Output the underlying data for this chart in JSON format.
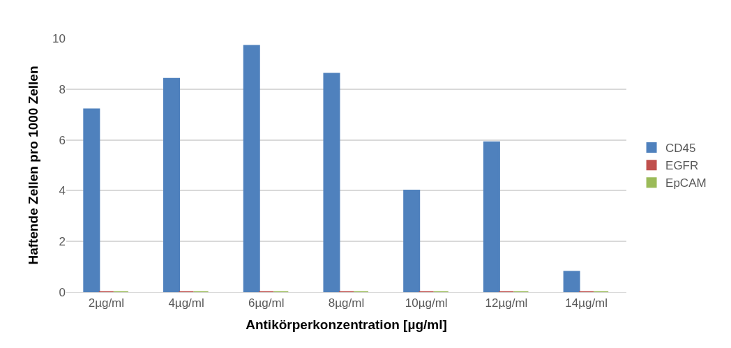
{
  "chart_data": {
    "type": "bar",
    "xlabel": "Antikörperkonzentration [µg/ml]",
    "ylabel": "Haftende Zellen pro 1000 Zellen",
    "categories": [
      "2µg/ml",
      "4µg/ml",
      "6µg/ml",
      "8µg/ml",
      "10µg/ml",
      "12µg/ml",
      "14µg/ml"
    ],
    "series": [
      {
        "name": "CD45",
        "color": "#4f81bd",
        "values": [
          7.2,
          8.4,
          9.7,
          8.6,
          4.0,
          5.9,
          0.8
        ]
      },
      {
        "name": "EGFR",
        "color": "#c0504d",
        "values": [
          0,
          0,
          0,
          0,
          0,
          0,
          0
        ]
      },
      {
        "name": "EpCAM",
        "color": "#9bbb59",
        "values": [
          0,
          0,
          0,
          0,
          0,
          0,
          0
        ]
      }
    ],
    "ylim": [
      0,
      10
    ],
    "yticks": [
      0,
      2,
      4,
      6,
      8,
      10
    ],
    "grid": "y",
    "legend": "right"
  }
}
